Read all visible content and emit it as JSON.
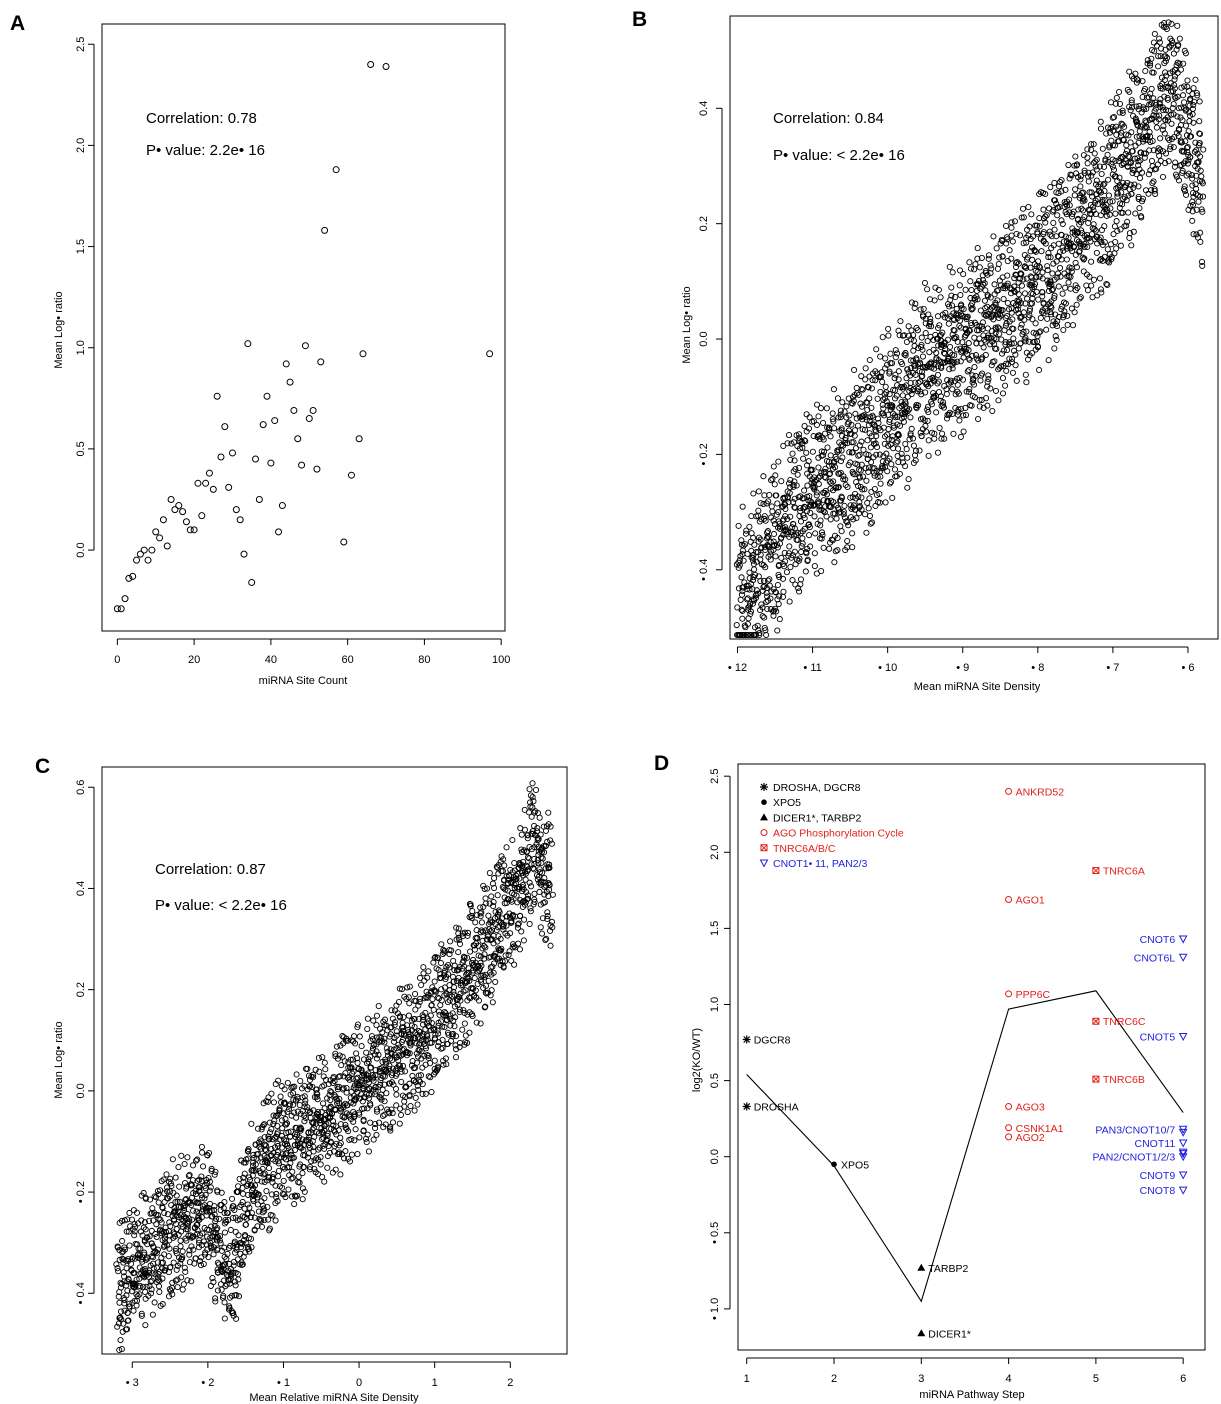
{
  "figure": {
    "panels": [
      {
        "key": "A",
        "label": "A"
      },
      {
        "key": "B",
        "label": "B"
      },
      {
        "key": "C",
        "label": "C"
      },
      {
        "key": "D",
        "label": "D"
      }
    ]
  },
  "chart_data": [
    {
      "panel": "A",
      "type": "scatter",
      "xlabel": "miRNA Site Count",
      "ylabel": "Mean Log• ratio",
      "xlim": [
        -4,
        101
      ],
      "ylim": [
        -0.4,
        2.6
      ],
      "xticks": [
        {
          "v": 0,
          "label": "0"
        },
        {
          "v": 20,
          "label": "20"
        },
        {
          "v": 40,
          "label": "40"
        },
        {
          "v": 60,
          "label": "60"
        },
        {
          "v": 80,
          "label": "80"
        },
        {
          "v": 100,
          "label": "100"
        }
      ],
      "yticks": [
        {
          "v": 0.0,
          "label": "0.0"
        },
        {
          "v": 0.5,
          "label": "0.5"
        },
        {
          "v": 1.0,
          "label": "1.0"
        },
        {
          "v": 1.5,
          "label": "1.5"
        },
        {
          "v": 2.0,
          "label": "2.0"
        },
        {
          "v": 2.5,
          "label": "2.5"
        }
      ],
      "annotations": [
        "Correlation: 0.78",
        "P• value: 2.2e• 16"
      ],
      "points": [
        [
          0,
          -0.29
        ],
        [
          1,
          -0.29
        ],
        [
          2,
          -0.24
        ],
        [
          3,
          -0.14
        ],
        [
          4,
          -0.13
        ],
        [
          5,
          -0.05
        ],
        [
          6,
          -0.02
        ],
        [
          7,
          0.0
        ],
        [
          8,
          -0.05
        ],
        [
          9,
          0.0
        ],
        [
          10,
          0.09
        ],
        [
          11,
          0.06
        ],
        [
          12,
          0.15
        ],
        [
          13,
          0.02
        ],
        [
          14,
          0.25
        ],
        [
          15,
          0.2
        ],
        [
          16,
          0.22
        ],
        [
          17,
          0.19
        ],
        [
          18,
          0.14
        ],
        [
          19,
          0.1
        ],
        [
          20,
          0.1
        ],
        [
          21,
          0.33
        ],
        [
          22,
          0.17
        ],
        [
          23,
          0.33
        ],
        [
          24,
          0.38
        ],
        [
          25,
          0.3
        ],
        [
          26,
          0.76
        ],
        [
          27,
          0.46
        ],
        [
          28,
          0.61
        ],
        [
          29,
          0.31
        ],
        [
          30,
          0.48
        ],
        [
          31,
          0.2
        ],
        [
          32,
          0.15
        ],
        [
          33,
          -0.02
        ],
        [
          34,
          1.02
        ],
        [
          35,
          -0.16
        ],
        [
          36,
          0.45
        ],
        [
          37,
          0.25
        ],
        [
          38,
          0.62
        ],
        [
          39,
          0.76
        ],
        [
          40,
          0.43
        ],
        [
          41,
          0.64
        ],
        [
          42,
          0.09
        ],
        [
          43,
          0.22
        ],
        [
          44,
          0.92
        ],
        [
          45,
          0.83
        ],
        [
          46,
          0.69
        ],
        [
          47,
          0.55
        ],
        [
          48,
          0.42
        ],
        [
          49,
          1.01
        ],
        [
          50,
          0.65
        ],
        [
          51,
          0.69
        ],
        [
          52,
          0.4
        ],
        [
          53,
          0.93
        ],
        [
          54,
          1.58
        ],
        [
          57,
          1.88
        ],
        [
          59,
          0.04
        ],
        [
          61,
          0.37
        ],
        [
          63,
          0.55
        ],
        [
          64,
          0.97
        ],
        [
          66,
          2.4
        ],
        [
          70,
          2.39
        ],
        [
          97,
          0.97
        ]
      ]
    },
    {
      "panel": "B",
      "type": "scatter",
      "xlabel": "Mean miRNA Site Density",
      "ylabel": "Mean Log• ratio",
      "xlim": [
        -12.1,
        -5.6
      ],
      "ylim": [
        -0.52,
        0.56
      ],
      "xticks": [
        {
          "v": -12,
          "label": "• 12"
        },
        {
          "v": -11,
          "label": "• 11"
        },
        {
          "v": -10,
          "label": "• 10"
        },
        {
          "v": -9,
          "label": "• 9"
        },
        {
          "v": -8,
          "label": "• 8"
        },
        {
          "v": -7,
          "label": "• 7"
        },
        {
          "v": -6,
          "label": "• 6"
        }
      ],
      "yticks": [
        {
          "v": -0.4,
          "label": "• 0.4"
        },
        {
          "v": -0.2,
          "label": "• 0.2"
        },
        {
          "v": 0.0,
          "label": "0.0"
        },
        {
          "v": 0.2,
          "label": "0.2"
        },
        {
          "v": 0.4,
          "label": "0.4"
        }
      ],
      "annotations": [
        "Correlation: 0.84",
        "P• value: < 2.2e• 16"
      ],
      "trend": [
        [
          -12.0,
          -0.46
        ],
        [
          -11.5,
          -0.36
        ],
        [
          -11.0,
          -0.26
        ],
        [
          -10.5,
          -0.22
        ],
        [
          -10.0,
          -0.14
        ],
        [
          -9.5,
          -0.06
        ],
        [
          -9.0,
          -0.02
        ],
        [
          -8.5,
          0.04
        ],
        [
          -8.0,
          0.1
        ],
        [
          -7.5,
          0.18
        ],
        [
          -7.0,
          0.26
        ],
        [
          -6.5,
          0.38
        ],
        [
          -6.2,
          0.44
        ],
        [
          -5.8,
          0.26
        ]
      ]
    },
    {
      "panel": "C",
      "type": "scatter",
      "xlabel": "Mean Relative miRNA Site Density",
      "ylabel": "Mean Log• ratio",
      "xlim": [
        -3.4,
        2.75
      ],
      "ylim": [
        -0.52,
        0.64
      ],
      "xticks": [
        {
          "v": -3,
          "label": "• 3"
        },
        {
          "v": -2,
          "label": "• 2"
        },
        {
          "v": -1,
          "label": "• 1"
        },
        {
          "v": 0,
          "label": "0"
        },
        {
          "v": 1,
          "label": "1"
        },
        {
          "v": 2,
          "label": "2"
        }
      ],
      "yticks": [
        {
          "v": -0.4,
          "label": "• 0.4"
        },
        {
          "v": -0.2,
          "label": "• 0.2"
        },
        {
          "v": 0.0,
          "label": "0.0"
        },
        {
          "v": 0.2,
          "label": "0.2"
        },
        {
          "v": 0.4,
          "label": "0.4"
        },
        {
          "v": 0.6,
          "label": "0.6"
        }
      ],
      "annotations": [
        "Correlation: 0.87",
        "P• value: < 2.2e• 16"
      ],
      "trend": [
        [
          -3.2,
          -0.4
        ],
        [
          -2.8,
          -0.32
        ],
        [
          -2.4,
          -0.26
        ],
        [
          -2.0,
          -0.24
        ],
        [
          -1.7,
          -0.36
        ],
        [
          -1.4,
          -0.18
        ],
        [
          -1.0,
          -0.1
        ],
        [
          -0.5,
          -0.06
        ],
        [
          0.0,
          0.0
        ],
        [
          0.5,
          0.06
        ],
        [
          1.0,
          0.14
        ],
        [
          1.5,
          0.24
        ],
        [
          2.0,
          0.36
        ],
        [
          2.3,
          0.48
        ],
        [
          2.55,
          0.4
        ]
      ]
    },
    {
      "panel": "D",
      "type": "scatter",
      "xlabel": "miRNA Pathway Step",
      "ylabel": "log2(KO/WT)",
      "xlim": [
        0.9,
        6.25
      ],
      "ylim": [
        -1.27,
        2.58
      ],
      "xticks": [
        {
          "v": 1,
          "label": "1"
        },
        {
          "v": 2,
          "label": "2"
        },
        {
          "v": 3,
          "label": "3"
        },
        {
          "v": 4,
          "label": "4"
        },
        {
          "v": 5,
          "label": "5"
        },
        {
          "v": 6,
          "label": "6"
        }
      ],
      "yticks": [
        {
          "v": -1.0,
          "label": "• 1.0"
        },
        {
          "v": -0.5,
          "label": "• 0.5"
        },
        {
          "v": 0.0,
          "label": "0.0"
        },
        {
          "v": 0.5,
          "label": "0.5"
        },
        {
          "v": 1.0,
          "label": "1.0"
        },
        {
          "v": 1.5,
          "label": "1.5"
        },
        {
          "v": 2.0,
          "label": "2.0"
        },
        {
          "v": 2.5,
          "label": "2.5"
        }
      ],
      "legend_position": "top-left",
      "legend": [
        {
          "label": "DROSHA, DGCR8",
          "symbol": "asterisk",
          "color": "#000000"
        },
        {
          "label": "XPO5",
          "symbol": "dot",
          "color": "#000000"
        },
        {
          "label": "DICER1*, TARBP2",
          "symbol": "triangle",
          "color": "#000000"
        },
        {
          "label": "AGO Phosphorylation Cycle",
          "symbol": "circle",
          "color": "#e0201b"
        },
        {
          "label": "TNRC6A/B/C",
          "symbol": "crossbox",
          "color": "#e0201b"
        },
        {
          "label": "CNOT1• 11, PAN2/3",
          "symbol": "triangle-down",
          "color": "#1f1fe0"
        }
      ],
      "line": [
        [
          1,
          0.54
        ],
        [
          2,
          -0.06
        ],
        [
          3,
          -0.95
        ],
        [
          4,
          0.97
        ],
        [
          5,
          1.09
        ],
        [
          6,
          0.29
        ]
      ],
      "points": [
        {
          "x": 1,
          "y": 0.77,
          "label": "DGCR8",
          "symbol": "asterisk",
          "color": "#000000",
          "anchor": "right"
        },
        {
          "x": 1,
          "y": 0.33,
          "label": "DROSHA",
          "symbol": "asterisk",
          "color": "#000000",
          "anchor": "right"
        },
        {
          "x": 2,
          "y": -0.05,
          "label": "XPO5",
          "symbol": "dot",
          "color": "#000000",
          "anchor": "right"
        },
        {
          "x": 3,
          "y": -0.73,
          "label": "TARBP2",
          "symbol": "triangle",
          "color": "#000000",
          "anchor": "right"
        },
        {
          "x": 3,
          "y": -1.16,
          "label": "DICER1*",
          "symbol": "triangle",
          "color": "#000000",
          "anchor": "right"
        },
        {
          "x": 4,
          "y": 2.4,
          "label": "ANKRD52",
          "symbol": "circle",
          "color": "#e0201b",
          "anchor": "right"
        },
        {
          "x": 4,
          "y": 1.69,
          "label": "AGO1",
          "symbol": "circle",
          "color": "#e0201b",
          "anchor": "right"
        },
        {
          "x": 4,
          "y": 1.07,
          "label": "PPP6C",
          "symbol": "circle",
          "color": "#e0201b",
          "anchor": "right"
        },
        {
          "x": 4,
          "y": 0.33,
          "label": "AGO3",
          "symbol": "circle",
          "color": "#e0201b",
          "anchor": "right"
        },
        {
          "x": 4,
          "y": 0.19,
          "label": "CSNK1A1",
          "symbol": "circle",
          "color": "#e0201b",
          "anchor": "right"
        },
        {
          "x": 4,
          "y": 0.13,
          "label": "AGO2",
          "symbol": "circle",
          "color": "#e0201b",
          "anchor": "right"
        },
        {
          "x": 5,
          "y": 1.88,
          "label": "TNRC6A",
          "symbol": "crossbox",
          "color": "#e0201b",
          "anchor": "right"
        },
        {
          "x": 5,
          "y": 0.89,
          "label": "TNRC6C",
          "symbol": "crossbox",
          "color": "#e0201b",
          "anchor": "right"
        },
        {
          "x": 5,
          "y": 0.51,
          "label": "TNRC6B",
          "symbol": "crossbox",
          "color": "#e0201b",
          "anchor": "right"
        },
        {
          "x": 6,
          "y": 1.43,
          "label": "CNOT6",
          "symbol": "triangle-down",
          "color": "#1f1fe0",
          "anchor": "left"
        },
        {
          "x": 6,
          "y": 1.31,
          "label": "CNOT6L",
          "symbol": "triangle-down",
          "color": "#1f1fe0",
          "anchor": "left"
        },
        {
          "x": 6,
          "y": 0.79,
          "label": "CNOT5",
          "symbol": "triangle-down",
          "color": "#1f1fe0",
          "anchor": "left"
        },
        {
          "x": 6,
          "y": 0.18,
          "label": "PAN3/CNOT10/7",
          "symbol": "triangle-down",
          "color": "#1f1fe0",
          "anchor": "left"
        },
        {
          "x": 6,
          "y": 0.09,
          "label": "CNOT11",
          "symbol": "triangle-down",
          "color": "#1f1fe0",
          "anchor": "left"
        },
        {
          "x": 6,
          "y": 0.0,
          "label": "PAN2/CNOT1/2/3",
          "symbol": "triangle-down",
          "color": "#1f1fe0",
          "anchor": "left"
        },
        {
          "x": 6,
          "y": -0.12,
          "label": "CNOT9",
          "symbol": "triangle-down",
          "color": "#1f1fe0",
          "anchor": "left"
        },
        {
          "x": 6,
          "y": -0.22,
          "label": "CNOT8",
          "symbol": "triangle-down",
          "color": "#1f1fe0",
          "anchor": "left"
        }
      ],
      "extra_markers": [
        {
          "x": 6,
          "y": 0.16,
          "symbol": "triangle-down",
          "color": "#1f1fe0"
        },
        {
          "x": 6,
          "y": 0.03,
          "symbol": "triangle-down",
          "color": "#1f1fe0"
        },
        {
          "x": 6,
          "y": 0.02,
          "symbol": "triangle-down",
          "color": "#1f1fe0"
        }
      ]
    }
  ]
}
